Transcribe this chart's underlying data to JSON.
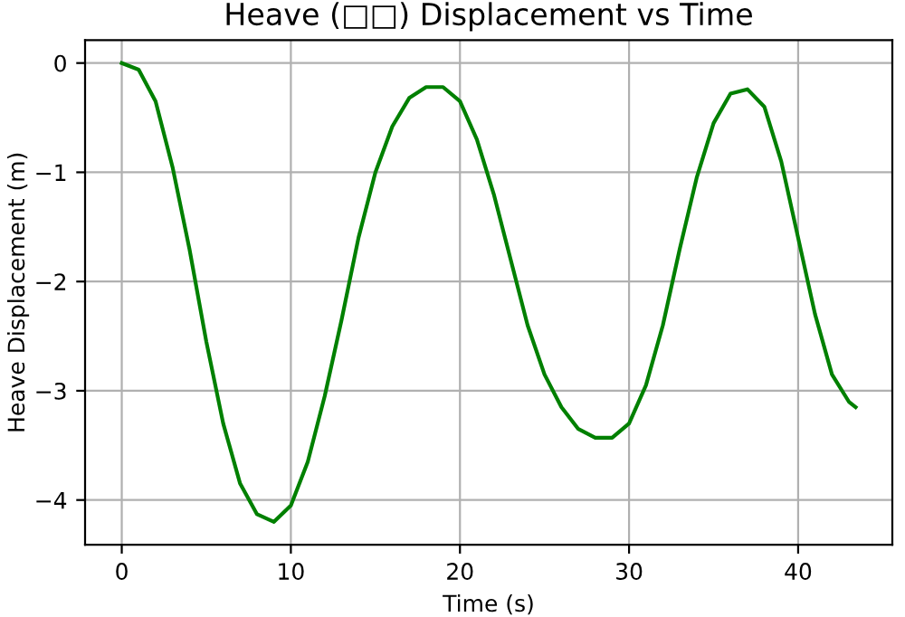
{
  "chart_data": {
    "type": "line",
    "title": "Heave (□□) Displacement vs Time",
    "xlabel": "Time (s)",
    "ylabel": "Heave Displacement (m)",
    "x": [
      0,
      1,
      2,
      3,
      4,
      5,
      6,
      7,
      8,
      9,
      10,
      11,
      12,
      13,
      14,
      15,
      16,
      17,
      18,
      19,
      20,
      21,
      22,
      23,
      24,
      25,
      26,
      27,
      28,
      29,
      30,
      31,
      32,
      33,
      34,
      35,
      36,
      37,
      38,
      39,
      40,
      41,
      42,
      43,
      43.4
    ],
    "series": [
      {
        "color": "#008000",
        "values": [
          0,
          -0.06,
          -0.35,
          -0.95,
          -1.7,
          -2.55,
          -3.3,
          -3.85,
          -4.13,
          -4.2,
          -4.05,
          -3.65,
          -3.05,
          -2.35,
          -1.6,
          -1.0,
          -0.58,
          -0.32,
          -0.22,
          -0.22,
          -0.35,
          -0.7,
          -1.2,
          -1.8,
          -2.4,
          -2.85,
          -3.15,
          -3.35,
          -3.43,
          -3.43,
          -3.3,
          -2.95,
          -2.4,
          -1.7,
          -1.05,
          -0.55,
          -0.28,
          -0.24,
          -0.4,
          -0.9,
          -1.6,
          -2.3,
          -2.85,
          -3.1,
          -3.15
        ]
      }
    ],
    "xlim": [
      -2.17,
      45.57
    ],
    "ylim": [
      -4.41,
      0.21
    ],
    "xticks": [
      0,
      10,
      20,
      30,
      40
    ],
    "yticks": [
      0,
      -1,
      -2,
      -3,
      -4
    ],
    "grid": true,
    "line_style": "solid"
  }
}
